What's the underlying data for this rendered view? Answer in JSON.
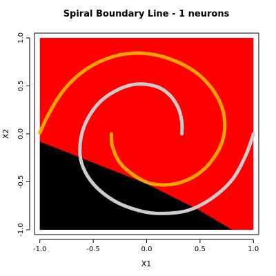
{
  "chart_data": {
    "type": "scatter",
    "title": "Spiral Boundary Line - 1 neurons",
    "xlabel": "X1",
    "ylabel": "X2",
    "xlim": [
      -1.05,
      1.05
    ],
    "ylim": [
      -1.05,
      1.05
    ],
    "x_ticks": [
      -1.0,
      -0.5,
      0.0,
      0.5,
      1.0
    ],
    "x_tick_labels": [
      "-1.0",
      "-0.5",
      "0.0",
      "0.5",
      "1.0"
    ],
    "y_ticks": [
      -1.0,
      -0.5,
      0.0,
      0.5,
      1.0
    ],
    "y_tick_labels": [
      "-1.0",
      "-0.5",
      "0.0",
      "0.5",
      "1.0"
    ],
    "grid": false,
    "decision_regions": {
      "class_a_color": "#ff0000",
      "class_b_color": "#000000",
      "class_b_polygon": [
        [
          -1.0,
          -0.08
        ],
        [
          -0.5,
          -0.3
        ],
        [
          0.0,
          -0.52
        ],
        [
          0.5,
          -0.8
        ],
        [
          0.8,
          -1.0
        ],
        [
          -1.0,
          -1.0
        ]
      ]
    },
    "series": [
      {
        "name": "spiral-orange",
        "color": "#ffa500",
        "points": [
          [
            -0.33,
            0.0
          ],
          [
            -0.32,
            -0.13
          ],
          [
            -0.25,
            -0.3
          ],
          [
            -0.12,
            -0.43
          ],
          [
            0.05,
            -0.52
          ],
          [
            0.27,
            -0.52
          ],
          [
            0.48,
            -0.42
          ],
          [
            0.63,
            -0.25
          ],
          [
            0.72,
            -0.03
          ],
          [
            0.72,
            0.22
          ],
          [
            0.62,
            0.46
          ],
          [
            0.45,
            0.65
          ],
          [
            0.22,
            0.78
          ],
          [
            -0.03,
            0.84
          ],
          [
            -0.3,
            0.81
          ],
          [
            -0.57,
            0.67
          ],
          [
            -0.78,
            0.45
          ],
          [
            -0.92,
            0.2
          ],
          [
            -1.0,
            0.01
          ]
        ]
      },
      {
        "name": "spiral-gray",
        "color": "#cccccc",
        "points": [
          [
            0.33,
            0.0
          ],
          [
            0.33,
            0.12
          ],
          [
            0.3,
            0.26
          ],
          [
            0.22,
            0.4
          ],
          [
            0.1,
            0.49
          ],
          [
            -0.08,
            0.52
          ],
          [
            -0.25,
            0.47
          ],
          [
            -0.43,
            0.34
          ],
          [
            -0.56,
            0.14
          ],
          [
            -0.62,
            -0.08
          ],
          [
            -0.61,
            -0.3
          ],
          [
            -0.5,
            -0.52
          ],
          [
            -0.3,
            -0.7
          ],
          [
            -0.07,
            -0.8
          ],
          [
            0.13,
            -0.83
          ],
          [
            0.38,
            -0.8
          ],
          [
            0.6,
            -0.68
          ],
          [
            0.8,
            -0.48
          ],
          [
            0.93,
            -0.22
          ],
          [
            1.0,
            0.0
          ]
        ]
      }
    ]
  }
}
